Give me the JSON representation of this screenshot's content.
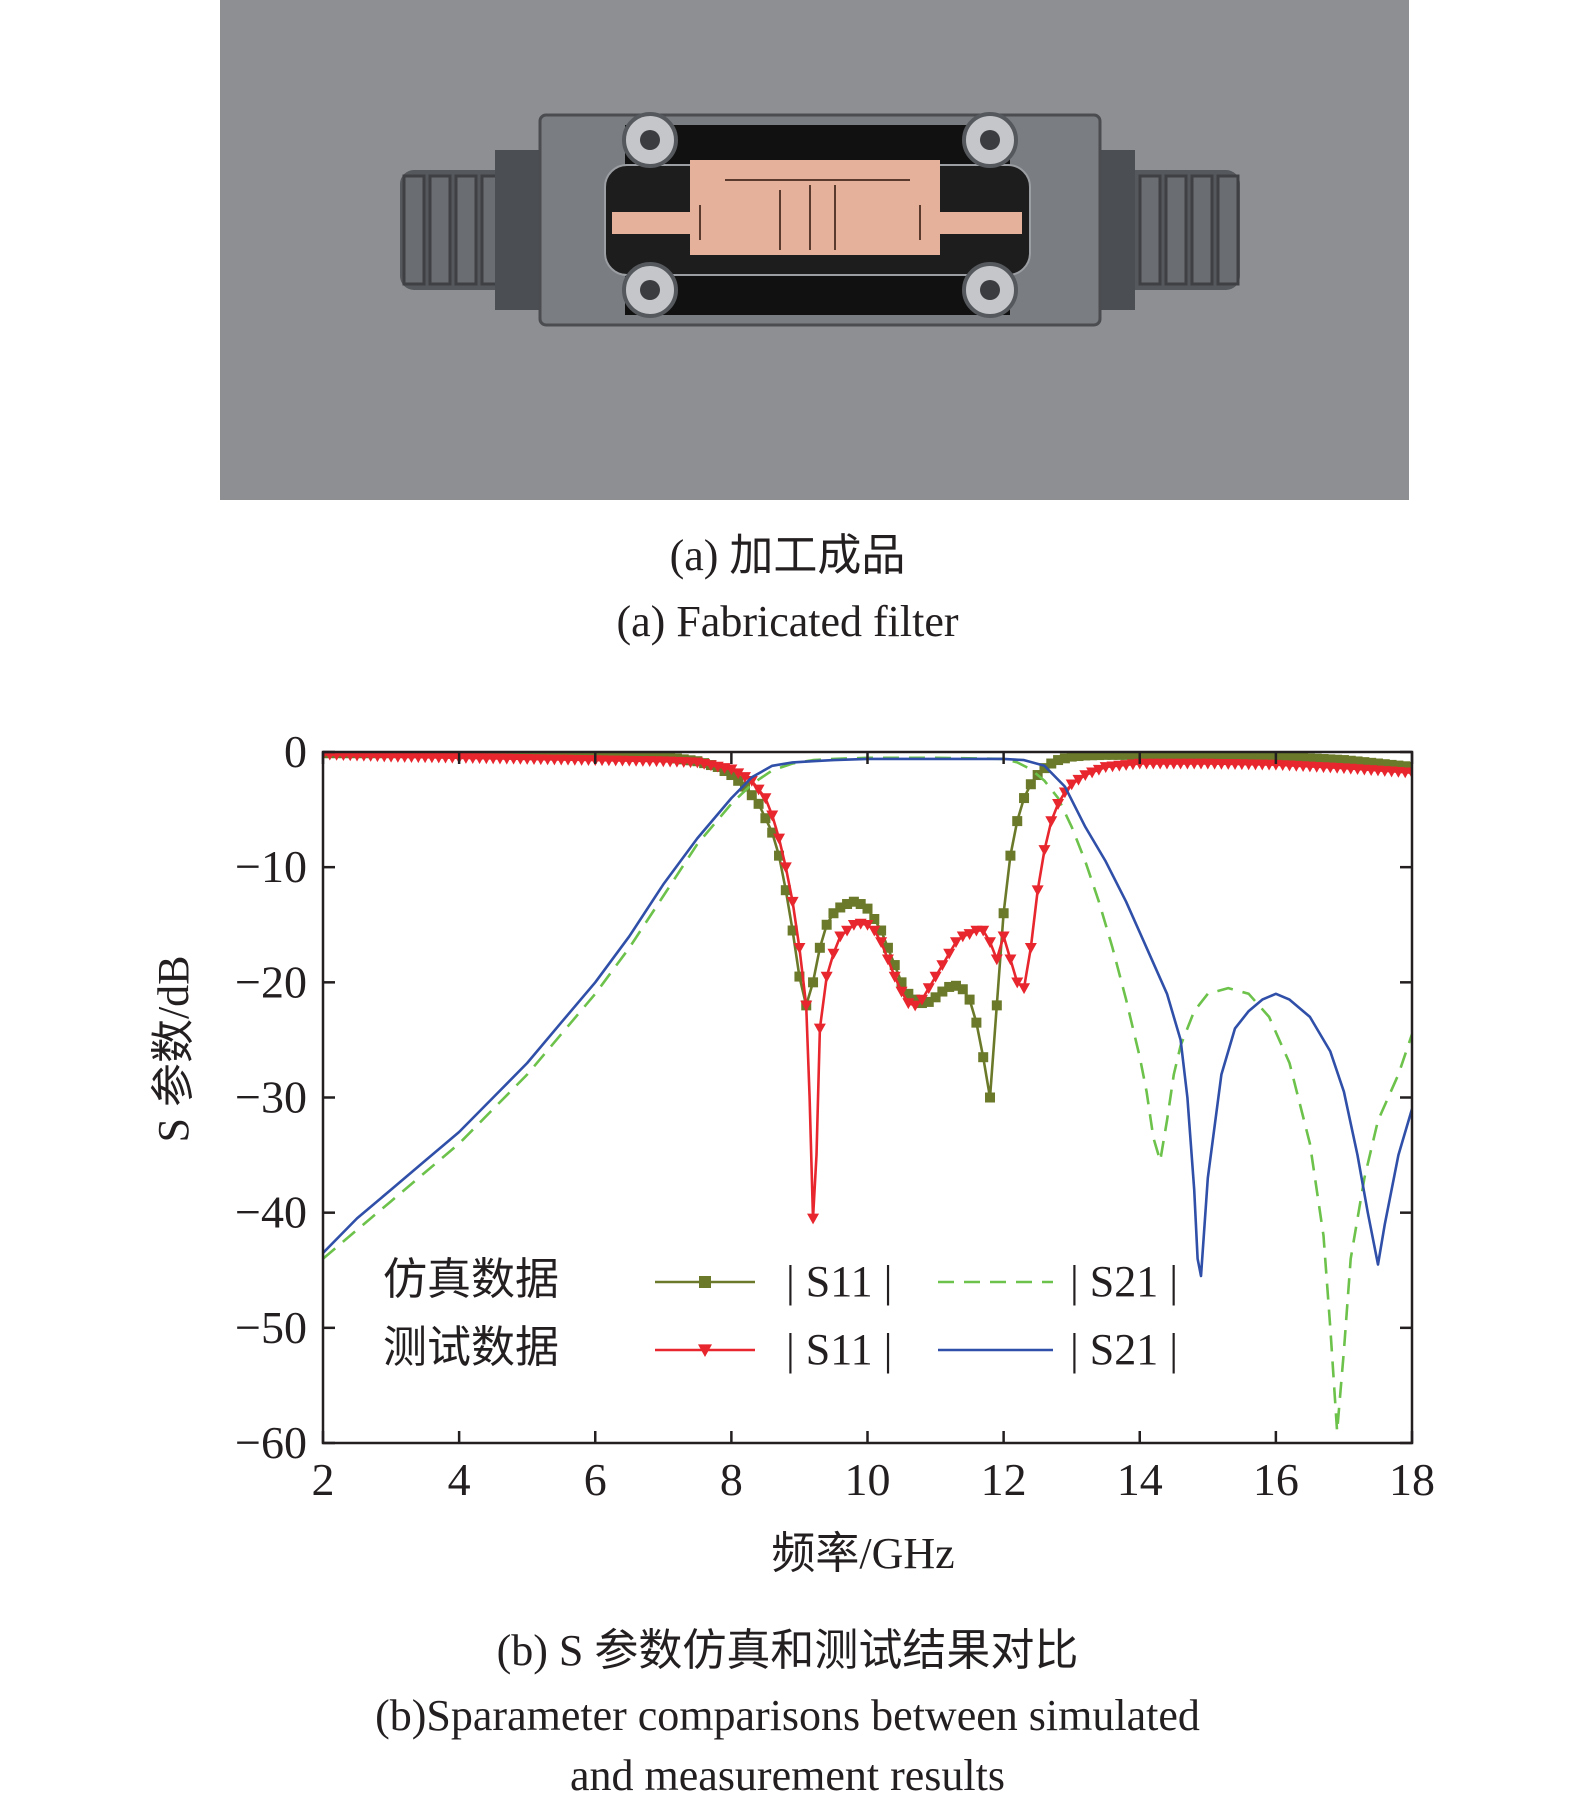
{
  "figure_a": {
    "caption_zh": "(a) 加工成品",
    "caption_en": "(a) Fabricated filter"
  },
  "figure_b": {
    "caption_zh": "(b) S 参数仿真和测试结果对比",
    "caption_en_line1": "(b)Sparameter comparisons between simulated",
    "caption_en_line2": "and measurement results"
  },
  "colors": {
    "sim_s11": "#6b7a2a",
    "meas_s11": "#e8262e",
    "sim_s21": "#6cc24a",
    "meas_s21": "#2f4fa8"
  },
  "chart_data": {
    "type": "line",
    "xlabel": "频率/GHz",
    "ylabel": "S 参数/dB",
    "xlim": [
      2,
      18
    ],
    "ylim": [
      -60,
      0
    ],
    "xticks": [
      2,
      4,
      6,
      8,
      10,
      12,
      14,
      16,
      18
    ],
    "yticks": [
      0,
      -10,
      -20,
      -30,
      -40,
      -50,
      -60
    ],
    "grid": false,
    "legend_placement": "bottom-left",
    "legend_groups": [
      "仿真数据",
      "测试数据"
    ],
    "series": [
      {
        "name": "| S11 |",
        "group": "仿真数据",
        "style": "solid-square-markers",
        "x": [
          2,
          3,
          4,
          5,
          6,
          6.5,
          7,
          7.5,
          7.8,
          8.0,
          8.2,
          8.4,
          8.6,
          8.7,
          8.8,
          8.9,
          9.0,
          9.1,
          9.2,
          9.3,
          9.4,
          9.5,
          9.6,
          9.7,
          9.8,
          9.9,
          10.0,
          10.1,
          10.2,
          10.3,
          10.4,
          10.5,
          10.6,
          10.7,
          10.8,
          10.9,
          11.0,
          11.1,
          11.2,
          11.3,
          11.4,
          11.5,
          11.6,
          11.7,
          11.8,
          11.9,
          12.0,
          12.1,
          12.2,
          12.3,
          12.4,
          12.5,
          12.6,
          12.7,
          12.8,
          13.0,
          13.2,
          13.5,
          14,
          15,
          16,
          17,
          18
        ],
        "y": [
          -0.1,
          -0.1,
          -0.1,
          -0.1,
          -0.15,
          -0.25,
          -0.4,
          -0.8,
          -1.3,
          -2.0,
          -3.0,
          -4.5,
          -7.0,
          -9.0,
          -12.0,
          -15.5,
          -19.5,
          -22.0,
          -20.0,
          -17.0,
          -15.0,
          -14.0,
          -13.5,
          -13.2,
          -13.0,
          -13.2,
          -13.6,
          -14.5,
          -15.5,
          -17.0,
          -18.5,
          -20.0,
          -21.0,
          -21.5,
          -21.8,
          -21.7,
          -21.3,
          -20.8,
          -20.4,
          -20.3,
          -20.6,
          -21.5,
          -23.5,
          -26.5,
          -30.0,
          -22.0,
          -14.0,
          -9.0,
          -6.0,
          -4.0,
          -2.8,
          -2.0,
          -1.4,
          -1.0,
          -0.7,
          -0.4,
          -0.3,
          -0.25,
          -0.25,
          -0.3,
          -0.4,
          -0.7,
          -1.3
        ]
      },
      {
        "name": "| S21 |",
        "group": "仿真数据",
        "style": "dashed",
        "x": [
          2,
          2.5,
          3,
          3.5,
          4,
          4.5,
          5,
          5.5,
          6,
          6.5,
          7,
          7.5,
          8,
          8.3,
          8.6,
          8.9,
          9.2,
          9.5,
          10,
          11,
          12,
          12.2,
          12.4,
          12.6,
          12.8,
          13,
          13.2,
          13.4,
          13.6,
          13.8,
          14.0,
          14.1,
          14.2,
          14.3,
          14.4,
          14.5,
          14.6,
          14.8,
          15.0,
          15.3,
          15.6,
          15.9,
          16.2,
          16.5,
          16.7,
          16.8,
          16.9,
          17.0,
          17.1,
          17.3,
          17.5,
          17.8,
          18
        ],
        "y": [
          -44,
          -41.5,
          -39,
          -36.5,
          -34,
          -31,
          -28,
          -24.5,
          -21,
          -17,
          -12.5,
          -8,
          -4.5,
          -2.8,
          -1.6,
          -1.0,
          -0.7,
          -0.6,
          -0.5,
          -0.5,
          -0.6,
          -0.9,
          -1.5,
          -2.5,
          -4.0,
          -6.5,
          -9.5,
          -13,
          -17,
          -21.5,
          -26.5,
          -29.5,
          -33.5,
          -35.5,
          -32,
          -28,
          -25.5,
          -22.5,
          -21,
          -20.5,
          -21,
          -23,
          -27,
          -34,
          -42,
          -50,
          -59,
          -52,
          -44,
          -37,
          -32,
          -28,
          -24.5
        ]
      },
      {
        "name": "| S11 |",
        "group": "测试数据",
        "style": "solid-triangle-markers",
        "x": [
          2,
          3,
          4,
          5,
          6,
          7,
          7.5,
          8.0,
          8.3,
          8.5,
          8.6,
          8.7,
          8.8,
          8.9,
          9.0,
          9.1,
          9.15,
          9.2,
          9.25,
          9.3,
          9.4,
          9.5,
          9.6,
          9.7,
          9.8,
          9.9,
          10.0,
          10.1,
          10.2,
          10.3,
          10.4,
          10.5,
          10.6,
          10.7,
          10.8,
          10.9,
          11.0,
          11.1,
          11.2,
          11.3,
          11.4,
          11.5,
          11.6,
          11.7,
          11.8,
          11.9,
          12.0,
          12.1,
          12.2,
          12.3,
          12.4,
          12.5,
          12.6,
          12.7,
          12.8,
          12.9,
          13.0,
          13.2,
          13.5,
          14,
          15,
          16,
          17,
          18
        ],
        "y": [
          -0.2,
          -0.4,
          -0.5,
          -0.6,
          -0.7,
          -0.8,
          -0.9,
          -1.5,
          -2.5,
          -4.0,
          -5.5,
          -7.5,
          -10.0,
          -13.0,
          -17.0,
          -22.0,
          -30.0,
          -40.5,
          -35.0,
          -24.0,
          -19.5,
          -17.5,
          -16.0,
          -15.5,
          -15.0,
          -14.9,
          -15.0,
          -15.5,
          -16.5,
          -18.0,
          -19.5,
          -20.8,
          -21.8,
          -22.0,
          -21.5,
          -20.5,
          -19.5,
          -18.5,
          -17.5,
          -16.5,
          -16.0,
          -15.8,
          -15.5,
          -15.5,
          -16.5,
          -18.0,
          -16.0,
          -18.0,
          -20.0,
          -20.5,
          -17.0,
          -12.0,
          -8.5,
          -6.0,
          -4.5,
          -3.5,
          -2.8,
          -2.0,
          -1.3,
          -1.0,
          -1.0,
          -1.1,
          -1.4,
          -1.8
        ]
      },
      {
        "name": "| S21 |",
        "group": "测试数据",
        "style": "solid",
        "x": [
          2,
          2.5,
          3,
          3.5,
          4,
          4.5,
          5,
          5.5,
          6,
          6.5,
          7,
          7.5,
          8,
          8.3,
          8.6,
          8.9,
          9.2,
          9.5,
          10,
          11,
          12,
          12.3,
          12.6,
          12.9,
          13.2,
          13.5,
          13.8,
          14.1,
          14.4,
          14.6,
          14.7,
          14.8,
          14.85,
          14.9,
          15.0,
          15.2,
          15.4,
          15.6,
          15.8,
          16.0,
          16.2,
          16.5,
          16.8,
          17.0,
          17.2,
          17.35,
          17.45,
          17.5,
          17.6,
          17.8,
          18
        ],
        "y": [
          -43.5,
          -40.5,
          -38,
          -35.5,
          -33,
          -30,
          -27,
          -23.5,
          -20,
          -16,
          -11.5,
          -7.5,
          -4,
          -2.2,
          -1.2,
          -0.9,
          -0.8,
          -0.7,
          -0.6,
          -0.6,
          -0.6,
          -0.7,
          -1.2,
          -3,
          -6.5,
          -9.5,
          -13,
          -17,
          -21,
          -25,
          -30,
          -38,
          -44,
          -45.5,
          -37,
          -28,
          -24,
          -22.5,
          -21.5,
          -21,
          -21.5,
          -23,
          -26,
          -29.5,
          -35,
          -40,
          -43,
          -44.5,
          -41,
          -35,
          -31
        ]
      }
    ]
  }
}
